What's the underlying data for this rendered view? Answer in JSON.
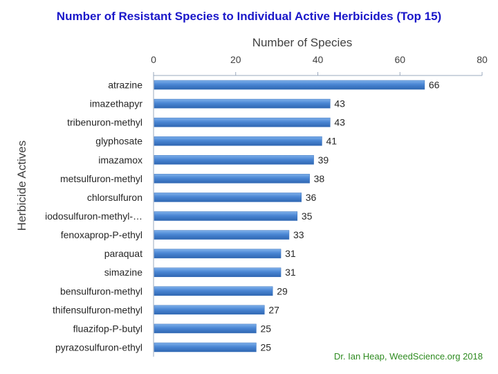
{
  "chart_data": {
    "type": "bar",
    "orientation": "horizontal",
    "title": "Number of Resistant Species to Individual Active Herbicides (Top 15)",
    "xlabel": "Number of Species",
    "ylabel": "Herbicide Actives",
    "xlim": [
      0,
      80
    ],
    "xticks": [
      "0",
      "20",
      "40",
      "60",
      "80"
    ],
    "x_axis_position": "top",
    "grid": false,
    "categories": [
      "atrazine",
      "imazethapyr",
      "tribenuron-methyl",
      "glyphosate",
      "imazamox",
      "metsulfuron-methyl",
      "chlorsulfuron",
      "iodosulfuron-methyl-…",
      "fenoxaprop-P-ethyl",
      "paraquat",
      "simazine",
      "bensulfuron-methyl",
      "thifensulfuron-methyl",
      "fluazifop-P-butyl",
      "pyrazosulfuron-ethyl"
    ],
    "values": [
      66,
      43,
      43,
      41,
      39,
      38,
      36,
      35,
      33,
      31,
      31,
      29,
      27,
      25,
      25
    ],
    "bar_color": "#4a86d4",
    "title_color": "#1a17c9"
  },
  "credit": "Dr. Ian Heap, WeedScience.org  2018",
  "credit_color": "#2e8b20"
}
